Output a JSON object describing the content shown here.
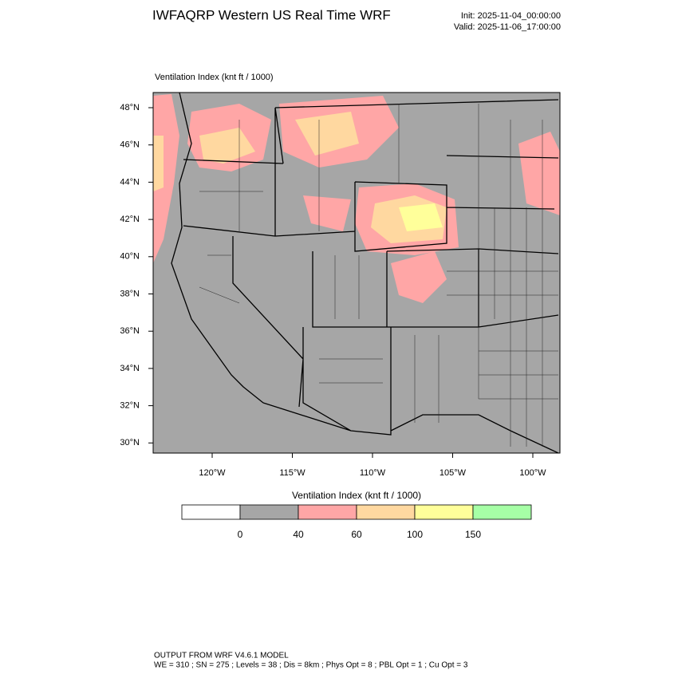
{
  "header": {
    "title": "IWFAQRP Western US Real Time WRF",
    "init": "Init: 2025-11-04_00:00:00",
    "valid": "Valid: 2025-11-06_17:00:00"
  },
  "map": {
    "subtitle": "Ventilation Index   (knt ft / 1000)",
    "lat_labels": [
      "48°N",
      "46°N",
      "44°N",
      "42°N",
      "40°N",
      "38°N",
      "36°N",
      "34°N",
      "32°N",
      "30°N"
    ],
    "lon_labels": [
      "120°W",
      "115°W",
      "110°W",
      "105°W",
      "100°W"
    ]
  },
  "colorbar": {
    "title": "Ventilation Index  (knt ft / 1000)",
    "levels": [
      0,
      40,
      60,
      100,
      150
    ],
    "colors": [
      "#ffffff",
      "#a6a6a6",
      "#ffa6a6",
      "#ffd8a0",
      "#ffff9a",
      "#a6ffa6"
    ]
  },
  "footer": {
    "line1": "OUTPUT FROM WRF V4.6.1 MODEL",
    "line2": "WE = 310 ; SN = 275 ; Levels = 38 ; Dis = 8km ; Phys Opt = 8 ; PBL Opt = 1 ; Cu Opt = 3"
  }
}
